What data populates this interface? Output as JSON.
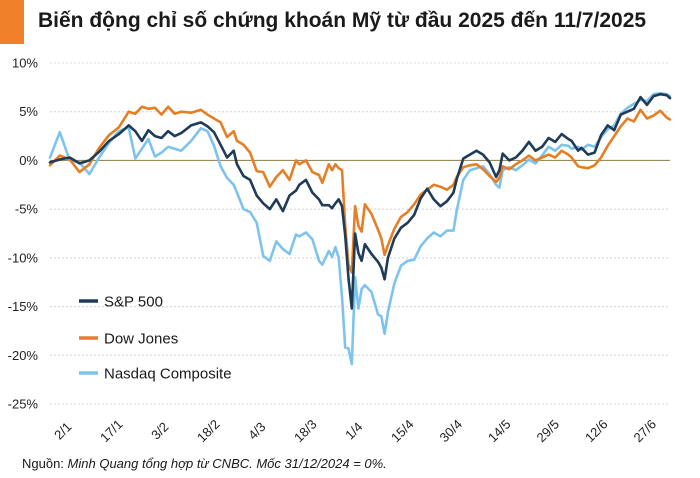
{
  "title": "Biến động chỉ số chứng khoán Mỹ từ đầu 2025 đến 11/7/2025",
  "source": {
    "prefix": "Nguồn: ",
    "text": "Minh Quang tổng hợp từ CNBC. Mốc 31/12/2024 = 0%."
  },
  "chart_data": {
    "type": "line",
    "title": "Biến động chỉ số chứng khoán Mỹ từ đầu 2025 đến 11/7/2025",
    "ylabel": "",
    "xlabel": "",
    "ylim": [
      -25,
      10
    ],
    "y_ticks": [
      10,
      5,
      0,
      -5,
      -10,
      -15,
      -20,
      -25
    ],
    "y_tick_labels": [
      "10%",
      "5%",
      "0%",
      "-5%",
      "-10%",
      "-15%",
      "-20%",
      "-25%"
    ],
    "x_tick_labels": [
      "2/1",
      "17/1",
      "3/2",
      "18/2",
      "4/3",
      "18/3",
      "1/4",
      "15/4",
      "30/4",
      "14/5",
      "29/5",
      "12/6",
      "27/6"
    ],
    "grid": true,
    "legend_position": "bottom-left",
    "series": [
      {
        "name": "S&P 500",
        "color": "#1f3b57",
        "values": [
          [
            0,
            -0.2
          ],
          [
            3,
            0.1
          ],
          [
            6,
            0.3
          ],
          [
            9,
            -0.3
          ],
          [
            12,
            0.0
          ],
          [
            15,
            0.9
          ],
          [
            18,
            2.0
          ],
          [
            21,
            2.7
          ],
          [
            24,
            3.6
          ],
          [
            26,
            3.0
          ],
          [
            28,
            2.0
          ],
          [
            30,
            3.1
          ],
          [
            32,
            2.5
          ],
          [
            34,
            2.3
          ],
          [
            36,
            3.0
          ],
          [
            38,
            2.5
          ],
          [
            40,
            2.8
          ],
          [
            43,
            3.6
          ],
          [
            46,
            3.9
          ],
          [
            48,
            3.5
          ],
          [
            50,
            2.9
          ],
          [
            52,
            1.6
          ],
          [
            54,
            0.3
          ],
          [
            56,
            1.0
          ],
          [
            57,
            -0.4
          ],
          [
            59,
            -1.6
          ],
          [
            61,
            -2.0
          ],
          [
            63,
            -3.6
          ],
          [
            65,
            -4.4
          ],
          [
            67,
            -5.0
          ],
          [
            69,
            -4.0
          ],
          [
            71,
            -5.2
          ],
          [
            73,
            -3.6
          ],
          [
            75,
            -3.1
          ],
          [
            76,
            -2.5
          ],
          [
            78,
            -2.0
          ],
          [
            80,
            -3.3
          ],
          [
            82,
            -4.0
          ],
          [
            83,
            -4.6
          ],
          [
            85,
            -4.6
          ],
          [
            86,
            -4.9
          ],
          [
            87,
            -4.4
          ],
          [
            88,
            -4.0
          ],
          [
            89,
            -4.7
          ],
          [
            90,
            -7.7
          ],
          [
            91,
            -12.1
          ],
          [
            92,
            -15.2
          ],
          [
            93,
            -7.5
          ],
          [
            94,
            -9.5
          ],
          [
            95,
            -10.3
          ],
          [
            96,
            -8.6
          ],
          [
            98,
            -9.6
          ],
          [
            100,
            -10.4
          ],
          [
            101,
            -11.0
          ],
          [
            102,
            -12.2
          ],
          [
            103,
            -10.0
          ],
          [
            105,
            -8.0
          ],
          [
            107,
            -6.9
          ],
          [
            109,
            -6.4
          ],
          [
            111,
            -5.6
          ],
          [
            113,
            -3.9
          ],
          [
            115,
            -2.9
          ],
          [
            117,
            -4.0
          ],
          [
            119,
            -4.7
          ],
          [
            121,
            -4.2
          ],
          [
            123,
            -3.3
          ],
          [
            124,
            -1.9
          ],
          [
            126,
            0.2
          ],
          [
            128,
            0.6
          ],
          [
            130,
            1.0
          ],
          [
            132,
            0.6
          ],
          [
            134,
            -0.2
          ],
          [
            136,
            -1.7
          ],
          [
            137,
            -1.0
          ],
          [
            138,
            0.7
          ],
          [
            140,
            0.0
          ],
          [
            142,
            0.3
          ],
          [
            144,
            1.0
          ],
          [
            146,
            1.9
          ],
          [
            148,
            1.0
          ],
          [
            150,
            1.4
          ],
          [
            152,
            2.3
          ],
          [
            154,
            1.9
          ],
          [
            156,
            2.7
          ],
          [
            158,
            2.2
          ],
          [
            159,
            2.0
          ],
          [
            161,
            1.0
          ],
          [
            162,
            1.3
          ],
          [
            164,
            0.6
          ],
          [
            166,
            0.8
          ],
          [
            168,
            2.6
          ],
          [
            170,
            3.6
          ],
          [
            172,
            3.1
          ],
          [
            174,
            4.7
          ],
          [
            176,
            5.0
          ],
          [
            178,
            5.3
          ],
          [
            180,
            6.5
          ],
          [
            182,
            5.7
          ],
          [
            184,
            6.6
          ],
          [
            186,
            6.8
          ],
          [
            188,
            6.7
          ],
          [
            189,
            6.4
          ]
        ]
      },
      {
        "name": "Dow Jones",
        "color": "#e57f25",
        "values": [
          [
            0,
            -0.5
          ],
          [
            3,
            0.5
          ],
          [
            6,
            0.1
          ],
          [
            9,
            -1.2
          ],
          [
            12,
            -0.4
          ],
          [
            15,
            1.3
          ],
          [
            18,
            2.6
          ],
          [
            21,
            3.4
          ],
          [
            24,
            5.0
          ],
          [
            26,
            4.8
          ],
          [
            28,
            5.5
          ],
          [
            30,
            5.3
          ],
          [
            32,
            5.4
          ],
          [
            34,
            4.7
          ],
          [
            36,
            5.5
          ],
          [
            38,
            4.8
          ],
          [
            40,
            5.0
          ],
          [
            43,
            4.9
          ],
          [
            46,
            5.2
          ],
          [
            48,
            4.7
          ],
          [
            50,
            4.3
          ],
          [
            52,
            3.9
          ],
          [
            54,
            2.4
          ],
          [
            56,
            3.0
          ],
          [
            57,
            2.0
          ],
          [
            59,
            1.6
          ],
          [
            61,
            0.8
          ],
          [
            63,
            -1.1
          ],
          [
            65,
            -1.2
          ],
          [
            67,
            -2.7
          ],
          [
            69,
            -1.7
          ],
          [
            71,
            -1.0
          ],
          [
            73,
            -2.0
          ],
          [
            75,
            0.0
          ],
          [
            76,
            -0.4
          ],
          [
            78,
            0.0
          ],
          [
            80,
            -1.2
          ],
          [
            82,
            -1.5
          ],
          [
            83,
            -2.3
          ],
          [
            85,
            -0.4
          ],
          [
            86,
            -1.0
          ],
          [
            87,
            -0.4
          ],
          [
            88,
            -0.8
          ],
          [
            89,
            -1.0
          ],
          [
            90,
            -6.7
          ],
          [
            91,
            -10.7
          ],
          [
            92,
            -11.5
          ],
          [
            93,
            -4.7
          ],
          [
            94,
            -6.7
          ],
          [
            95,
            -7.3
          ],
          [
            96,
            -4.5
          ],
          [
            98,
            -5.5
          ],
          [
            100,
            -7.1
          ],
          [
            101,
            -8.0
          ],
          [
            102,
            -9.7
          ],
          [
            103,
            -8.7
          ],
          [
            105,
            -7.0
          ],
          [
            107,
            -5.8
          ],
          [
            109,
            -5.3
          ],
          [
            111,
            -4.5
          ],
          [
            113,
            -3.5
          ],
          [
            115,
            -3.0
          ],
          [
            117,
            -2.5
          ],
          [
            119,
            -2.7
          ],
          [
            121,
            -3.0
          ],
          [
            123,
            -2.5
          ],
          [
            124,
            -1.7
          ],
          [
            126,
            -0.7
          ],
          [
            128,
            -0.5
          ],
          [
            130,
            -0.4
          ],
          [
            132,
            -0.9
          ],
          [
            134,
            -1.6
          ],
          [
            136,
            -2.2
          ],
          [
            137,
            -1.8
          ],
          [
            138,
            -0.6
          ],
          [
            140,
            -0.9
          ],
          [
            142,
            -0.4
          ],
          [
            144,
            0.0
          ],
          [
            146,
            0.5
          ],
          [
            148,
            0.0
          ],
          [
            150,
            0.3
          ],
          [
            152,
            0.6
          ],
          [
            154,
            0.3
          ],
          [
            156,
            1.0
          ],
          [
            158,
            0.6
          ],
          [
            159,
            0.3
          ],
          [
            161,
            -0.6
          ],
          [
            162,
            -0.7
          ],
          [
            164,
            -0.8
          ],
          [
            166,
            -0.5
          ],
          [
            168,
            0.3
          ],
          [
            170,
            1.5
          ],
          [
            172,
            2.5
          ],
          [
            174,
            3.5
          ],
          [
            176,
            4.3
          ],
          [
            178,
            4.0
          ],
          [
            180,
            5.2
          ],
          [
            182,
            4.3
          ],
          [
            184,
            4.6
          ],
          [
            186,
            5.1
          ],
          [
            188,
            4.4
          ],
          [
            189,
            4.2
          ]
        ]
      },
      {
        "name": "Nasdaq Composite",
        "color": "#7ec3ee",
        "values": [
          [
            0,
            0.3
          ],
          [
            3,
            2.9
          ],
          [
            6,
            0.0
          ],
          [
            9,
            -0.2
          ],
          [
            12,
            -1.4
          ],
          [
            15,
            0.3
          ],
          [
            18,
            1.8
          ],
          [
            21,
            3.0
          ],
          [
            24,
            3.4
          ],
          [
            26,
            0.2
          ],
          [
            28,
            1.2
          ],
          [
            30,
            2.2
          ],
          [
            32,
            0.4
          ],
          [
            34,
            0.8
          ],
          [
            36,
            1.4
          ],
          [
            38,
            1.2
          ],
          [
            40,
            1.0
          ],
          [
            43,
            2.0
          ],
          [
            46,
            3.3
          ],
          [
            48,
            3.0
          ],
          [
            50,
            1.5
          ],
          [
            52,
            -0.6
          ],
          [
            54,
            -1.8
          ],
          [
            56,
            -2.5
          ],
          [
            57,
            -3.3
          ],
          [
            59,
            -5.0
          ],
          [
            61,
            -5.3
          ],
          [
            63,
            -6.4
          ],
          [
            65,
            -9.8
          ],
          [
            67,
            -10.3
          ],
          [
            69,
            -8.3
          ],
          [
            71,
            -9.1
          ],
          [
            73,
            -9.6
          ],
          [
            75,
            -7.6
          ],
          [
            76,
            -7.8
          ],
          [
            78,
            -7.4
          ],
          [
            80,
            -8.1
          ],
          [
            82,
            -10.3
          ],
          [
            83,
            -10.7
          ],
          [
            85,
            -9.3
          ],
          [
            86,
            -9.9
          ],
          [
            87,
            -8.9
          ],
          [
            88,
            -10.0
          ],
          [
            89,
            -14.0
          ],
          [
            90,
            -19.2
          ],
          [
            91,
            -19.3
          ],
          [
            92,
            -20.9
          ],
          [
            93,
            -12.0
          ],
          [
            94,
            -15.2
          ],
          [
            95,
            -13.2
          ],
          [
            96,
            -12.8
          ],
          [
            98,
            -13.5
          ],
          [
            100,
            -15.8
          ],
          [
            101,
            -16.0
          ],
          [
            102,
            -17.8
          ],
          [
            103,
            -15.6
          ],
          [
            105,
            -12.6
          ],
          [
            107,
            -10.8
          ],
          [
            109,
            -10.3
          ],
          [
            111,
            -10.2
          ],
          [
            113,
            -8.8
          ],
          [
            115,
            -8.0
          ],
          [
            117,
            -7.4
          ],
          [
            119,
            -7.8
          ],
          [
            121,
            -7.2
          ],
          [
            123,
            -7.2
          ],
          [
            124,
            -5.1
          ],
          [
            126,
            -2.0
          ],
          [
            128,
            -1.0
          ],
          [
            130,
            -0.8
          ],
          [
            132,
            -0.6
          ],
          [
            134,
            -1.4
          ],
          [
            136,
            -2.5
          ],
          [
            137,
            -2.8
          ],
          [
            138,
            -1.0
          ],
          [
            140,
            -0.7
          ],
          [
            142,
            -1.0
          ],
          [
            144,
            -0.5
          ],
          [
            146,
            0.1
          ],
          [
            148,
            -0.3
          ],
          [
            150,
            0.5
          ],
          [
            152,
            1.4
          ],
          [
            154,
            1.0
          ],
          [
            156,
            1.6
          ],
          [
            158,
            1.5
          ],
          [
            159,
            1.2
          ],
          [
            161,
            1.4
          ],
          [
            162,
            1.1
          ],
          [
            164,
            1.6
          ],
          [
            166,
            1.4
          ],
          [
            168,
            2.4
          ],
          [
            170,
            3.2
          ],
          [
            172,
            3.6
          ],
          [
            174,
            4.8
          ],
          [
            176,
            5.4
          ],
          [
            178,
            5.8
          ],
          [
            180,
            6.2
          ],
          [
            182,
            6.1
          ],
          [
            184,
            6.8
          ],
          [
            186,
            6.9
          ],
          [
            188,
            6.8
          ],
          [
            189,
            6.6
          ]
        ]
      }
    ]
  }
}
